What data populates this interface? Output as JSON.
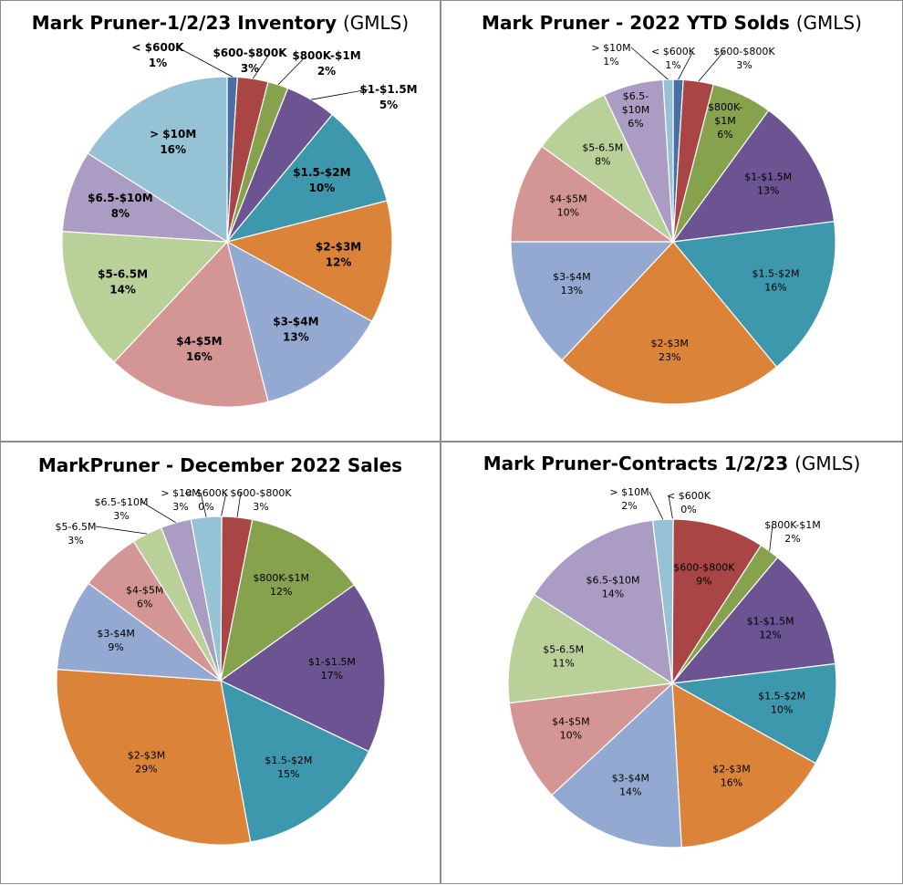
{
  "colors": {
    "<$600K": "#4a6fa5",
    "$600-$800K": "#a94545",
    "$800K-$1M": "#86a24c",
    "$1-$1.5M": "#6b5491",
    "$1.5-$2M": "#3d97ad",
    "$2-$3M": "#db8439",
    "$3-$4M": "#93a9d1",
    "$4-$5M": "#d49695",
    "$5-6.5M": "#bad099",
    "$6.5-$10M": "#aa9cc2",
    ">$10M": "#95c3d5"
  },
  "chart_data": [
    {
      "type": "pie",
      "title": "Mark Pruner-1/2/23 Inventory",
      "title_suffix": "(GMLS)",
      "label_style": "bold",
      "slices": [
        {
          "key": "<$600K",
          "name": "< $600K",
          "value": 1,
          "label": "1%"
        },
        {
          "key": "$600-$800K",
          "name": "$600-$800K",
          "value": 3,
          "label": "3%"
        },
        {
          "key": "$800K-$1M",
          "name": "$800K-$1M",
          "value": 2,
          "label": "2%"
        },
        {
          "key": "$1-$1.5M",
          "name": "$1-$1.5M",
          "value": 5,
          "label": "5%"
        },
        {
          "key": "$1.5-$2M",
          "name": "$1.5-$2M",
          "value": 10,
          "label": "10%"
        },
        {
          "key": "$2-$3M",
          "name": "$2-$3M",
          "value": 12,
          "label": "12%"
        },
        {
          "key": "$3-$4M",
          "name": "$3-$4M",
          "value": 13,
          "label": "13%"
        },
        {
          "key": "$4-$5M",
          "name": "$4-$5M",
          "value": 16,
          "label": "16%"
        },
        {
          "key": "$5-6.5M",
          "name": "$5-6.5M",
          "value": 14,
          "label": "14%"
        },
        {
          "key": "$6.5-$10M",
          "name": "$6.5-$10M",
          "value": 8,
          "label": "8%"
        },
        {
          "key": ">$10M",
          "name": "> $10M",
          "value": 16,
          "label": "16%"
        }
      ]
    },
    {
      "type": "pie",
      "title": "Mark Pruner - 2022 YTD Solds",
      "title_suffix": "(GMLS)",
      "label_style": "normal",
      "slices": [
        {
          "key": "<$600K",
          "name": "< $600K",
          "value": 1,
          "label": "1%"
        },
        {
          "key": "$600-$800K",
          "name": "$600-$800K",
          "value": 3,
          "label": "3%"
        },
        {
          "key": "$800K-$1M",
          "name": "$800K-$1M",
          "value": 6,
          "label": "6%"
        },
        {
          "key": "$1-$1.5M",
          "name": "$1-$1.5M",
          "value": 13,
          "label": "13%"
        },
        {
          "key": "$1.5-$2M",
          "name": "$1.5-$2M",
          "value": 16,
          "label": "16%"
        },
        {
          "key": "$2-$3M",
          "name": "$2-$3M",
          "value": 23,
          "label": "23%"
        },
        {
          "key": "$3-$4M",
          "name": "$3-$4M",
          "value": 13,
          "label": "13%"
        },
        {
          "key": "$4-$5M",
          "name": "$4-$5M",
          "value": 10,
          "label": "10%"
        },
        {
          "key": "$5-6.5M",
          "name": "$5-6.5M",
          "value": 8,
          "label": "8%"
        },
        {
          "key": "$6.5-$10M",
          "name": "$6.5-$10M",
          "value": 6,
          "label": "6%"
        },
        {
          "key": ">$10M",
          "name": "> $10M",
          "value": 1,
          "label": "1%"
        }
      ]
    },
    {
      "type": "pie",
      "title": "MarkPruner - December 2022 Sales",
      "title_suffix": "",
      "label_style": "normal",
      "slices": [
        {
          "key": "<$600K",
          "name": "< $600K",
          "value": 0,
          "label": "0%"
        },
        {
          "key": "$600-$800K",
          "name": "$600-$800K",
          "value": 3,
          "label": "3%"
        },
        {
          "key": "$800K-$1M",
          "name": "$800K-$1M",
          "value": 12,
          "label": "12%"
        },
        {
          "key": "$1-$1.5M",
          "name": "$1-$1.5M",
          "value": 17,
          "label": "17%"
        },
        {
          "key": "$1.5-$2M",
          "name": "$1.5-$2M",
          "value": 15,
          "label": "15%"
        },
        {
          "key": "$2-$3M",
          "name": "$2-$3M",
          "value": 29,
          "label": "29%"
        },
        {
          "key": "$3-$4M",
          "name": "$3-$4M",
          "value": 9,
          "label": "9%"
        },
        {
          "key": "$4-$5M",
          "name": "$4-$5M",
          "value": 6,
          "label": "6%"
        },
        {
          "key": "$5-6.5M",
          "name": "$5-6.5M",
          "value": 3,
          "label": "3%"
        },
        {
          "key": "$6.5-$10M",
          "name": "$6.5-$10M",
          "value": 3,
          "label": "3%"
        },
        {
          "key": ">$10M",
          "name": "> $10M",
          "value": 3,
          "label": "3%"
        }
      ]
    },
    {
      "type": "pie",
      "title": "Mark Pruner-Contracts 1/2/23",
      "title_suffix": "(GMLS)",
      "label_style": "normal",
      "slices": [
        {
          "key": "<$600K",
          "name": "< $600K",
          "value": 0,
          "label": "0%"
        },
        {
          "key": "$600-$800K",
          "name": "$600-$800K",
          "value": 9,
          "label": "9%"
        },
        {
          "key": "$800K-$1M",
          "name": "$800K-$1M",
          "value": 2,
          "label": "2%"
        },
        {
          "key": "$1-$1.5M",
          "name": "$1-$1.5M",
          "value": 12,
          "label": "12%"
        },
        {
          "key": "$1.5-$2M",
          "name": "$1.5-$2M",
          "value": 10,
          "label": "10%"
        },
        {
          "key": "$2-$3M",
          "name": "$2-$3M",
          "value": 16,
          "label": "16%"
        },
        {
          "key": "$3-$4M",
          "name": "$3-$4M",
          "value": 14,
          "label": "14%"
        },
        {
          "key": "$4-$5M",
          "name": "$4-$5M",
          "value": 10,
          "label": "10%"
        },
        {
          "key": "$5-6.5M",
          "name": "$5-6.5M",
          "value": 11,
          "label": "11%"
        },
        {
          "key": "$6.5-$10M",
          "name": "$6.5-$10M",
          "value": 14,
          "label": "14%"
        },
        {
          "key": ">$10M",
          "name": "> $10M",
          "value": 2,
          "label": "2%"
        }
      ]
    }
  ]
}
